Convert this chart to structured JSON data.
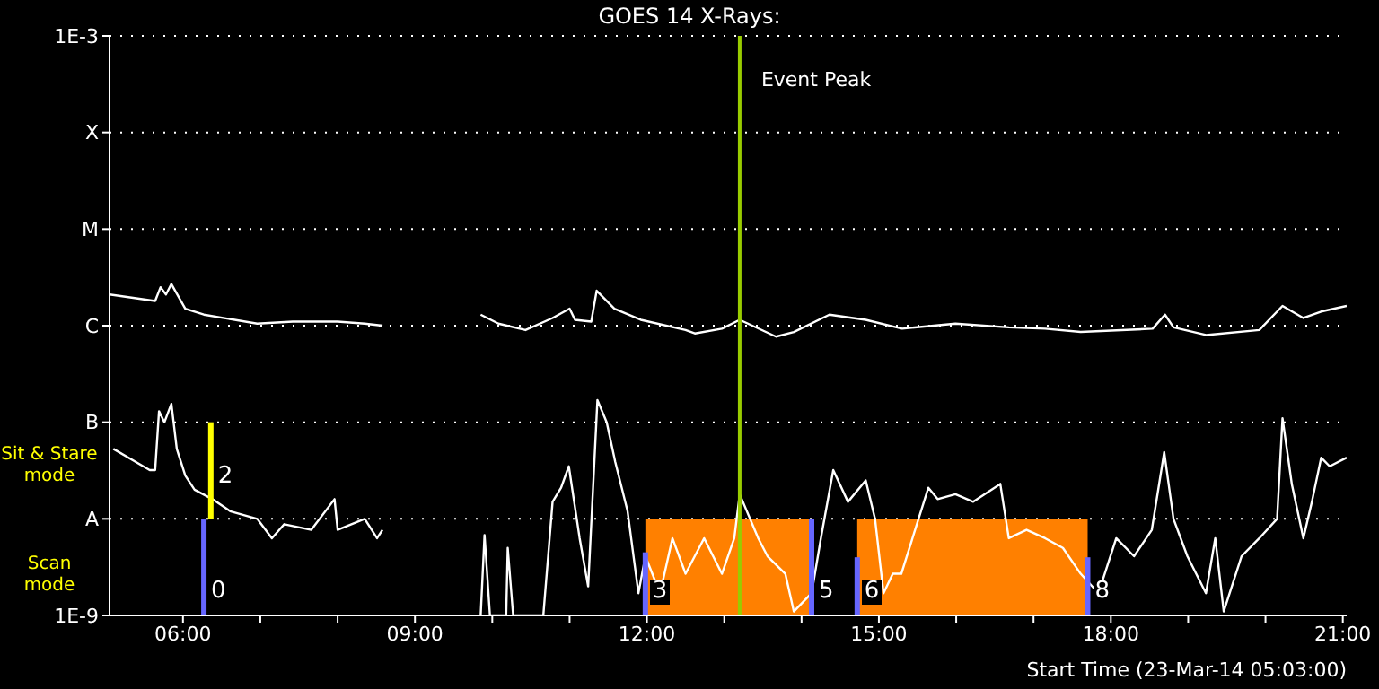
{
  "chart_data": {
    "type": "line",
    "title": "GOES 14 X-Rays:",
    "xlabel": "Start Time (23-Mar-14 05:03:00)",
    "xlim": [
      5.05,
      21.05
    ],
    "xticks": [
      {
        "value": 6,
        "label": "06:00"
      },
      {
        "value": 7,
        "label": null
      },
      {
        "value": 8,
        "label": null
      },
      {
        "value": 9,
        "label": "09:00"
      },
      {
        "value": 10,
        "label": null
      },
      {
        "value": 11,
        "label": null
      },
      {
        "value": 12,
        "label": "12:00"
      },
      {
        "value": 13,
        "label": null
      },
      {
        "value": 14,
        "label": null
      },
      {
        "value": 15,
        "label": "15:00"
      },
      {
        "value": 16,
        "label": null
      },
      {
        "value": 17,
        "label": null
      },
      {
        "value": 18,
        "label": "18:00"
      },
      {
        "value": 19,
        "label": null
      },
      {
        "value": 20,
        "label": null
      },
      {
        "value": 21,
        "label": "21:00"
      }
    ],
    "ylim": [
      1e-09,
      0.001
    ],
    "log": true,
    "yticks": [
      {
        "value": 1e-09,
        "label": "1E-9"
      },
      {
        "value": 1e-08,
        "label": "A"
      },
      {
        "value": 1e-07,
        "label": "B"
      },
      {
        "value": 1e-06,
        "label": "C"
      },
      {
        "value": 1e-05,
        "label": "M"
      },
      {
        "value": 0.0001,
        "label": "X"
      },
      {
        "value": 0.001,
        "label": "1E-3"
      }
    ],
    "grid": "y",
    "legend": false,
    "series": [
      {
        "type": "area",
        "color": "#ff8000",
        "x": [
          11.98,
          14.13,
          14.14,
          14.72,
          17.7
        ],
        "values": [
          1e-08,
          1e-08,
          null,
          1e-08,
          1e-08
        ]
      },
      {
        "color": "#ffffff",
        "x": [
          5.05,
          5.64,
          5.71,
          5.78,
          5.85,
          6.03,
          6.27,
          6.96,
          7.42,
          8.0,
          8.35,
          8.58,
          9.2,
          9.85,
          10.08,
          10.43,
          10.78,
          11.0,
          11.07,
          11.28,
          11.35,
          11.58,
          11.92,
          12.5,
          12.62,
          12.97,
          13.2,
          13.67,
          13.9,
          14.36,
          14.83,
          15.3,
          15.99,
          16.68,
          17.15,
          17.61,
          18.54,
          18.7,
          18.81,
          19.23,
          19.92,
          20.22,
          20.49,
          20.72,
          21.05
        ],
        "values": [
          2.1e-06,
          1.8e-06,
          2.5e-06,
          2.1e-06,
          2.7e-06,
          1.5e-06,
          1.3e-06,
          1.05e-06,
          1.1e-06,
          1.1e-06,
          1.05e-06,
          1e-06,
          null,
          1.3e-06,
          1.05e-06,
          9e-07,
          1.2e-06,
          1.5e-06,
          1.15e-06,
          1.1e-06,
          2.3e-06,
          1.5e-06,
          1.15e-06,
          9e-07,
          8.3e-07,
          9.3e-07,
          1.15e-06,
          7.7e-07,
          8.6e-07,
          1.3e-06,
          1.15e-06,
          9.3e-07,
          1.05e-06,
          9.6e-07,
          9.3e-07,
          8.6e-07,
          9.3e-07,
          1.3e-06,
          9.6e-07,
          8e-07,
          9e-07,
          1.6e-06,
          1.2e-06,
          1.4e-06,
          1.6e-06
        ]
      },
      {
        "color": "#ffffff",
        "x": [
          5.1,
          5.57,
          5.64,
          5.69,
          5.76,
          5.85,
          5.92,
          6.03,
          6.15,
          6.38,
          6.61,
          6.96,
          7.15,
          7.31,
          7.66,
          7.96,
          8.0,
          8.35,
          8.51,
          8.58,
          9.2,
          9.85,
          9.9,
          9.97,
          10.18,
          10.2,
          10.27,
          10.66,
          10.78,
          10.89,
          10.99,
          11.13,
          11.24,
          11.36,
          11.48,
          11.59,
          11.75,
          11.89,
          11.98,
          12.17,
          12.33,
          12.5,
          12.74,
          12.97,
          13.13,
          13.2,
          13.44,
          13.56,
          13.79,
          13.9,
          14.13,
          14.25,
          14.41,
          14.6,
          14.83,
          14.95,
          15.06,
          15.18,
          15.29,
          15.64,
          15.76,
          15.99,
          16.22,
          16.57,
          16.68,
          16.91,
          17.15,
          17.38,
          17.61,
          17.84,
          18.07,
          18.3,
          18.53,
          18.69,
          18.81,
          18.99,
          19.23,
          19.35,
          19.46,
          19.69,
          19.92,
          20.15,
          20.22,
          20.34,
          20.49,
          20.6,
          20.72,
          20.83,
          21.05
        ],
        "values": [
          5.3e-08,
          3.2e-08,
          3.2e-08,
          1.3e-07,
          1e-07,
          1.55e-07,
          5.3e-08,
          2.8e-08,
          2e-08,
          1.6e-08,
          1.2e-08,
          1e-08,
          6.3e-09,
          8.8e-09,
          7.7e-09,
          1.6e-08,
          7.7e-09,
          1e-08,
          6.3e-09,
          7.7e-09,
          null,
          1e-09,
          6.8e-09,
          1e-09,
          1e-09,
          5e-09,
          1e-09,
          1e-09,
          1.5e-08,
          2.1e-08,
          3.5e-08,
          6.3e-09,
          2e-09,
          1.7e-07,
          1e-07,
          3.9e-08,
          1.2e-08,
          1.7e-09,
          4.1e-09,
          1.7e-09,
          6.3e-09,
          2.7e-09,
          6.3e-09,
          2.7e-09,
          6.3e-09,
          1.8e-08,
          6.3e-09,
          4.1e-09,
          2.7e-09,
          1.1e-09,
          1.7e-09,
          6.3e-09,
          3.2e-08,
          1.5e-08,
          2.5e-08,
          1e-08,
          1.7e-09,
          2.7e-09,
          2.7e-09,
          2.1e-08,
          1.6e-08,
          1.8e-08,
          1.5e-08,
          2.3e-08,
          6.3e-09,
          7.7e-09,
          6.3e-09,
          5e-09,
          2.7e-09,
          1.7e-09,
          6.3e-09,
          4.1e-09,
          7.7e-09,
          4.9e-08,
          1e-08,
          4.1e-09,
          1.7e-09,
          6.3e-09,
          1.1e-09,
          4.1e-09,
          6.3e-09,
          1e-08,
          1.1e-07,
          2.3e-08,
          6.3e-09,
          1.5e-08,
          4.3e-08,
          3.5e-08,
          4.3e-08
        ]
      },
      {
        "color": "#6666ff",
        "x": [
          6.27,
          6.27
        ],
        "values": [
          1e-09,
          1e-08
        ]
      },
      {
        "color": "#6666ff",
        "x": [
          11.98,
          11.98
        ],
        "values": [
          1e-09,
          4.5e-09
        ]
      },
      {
        "color": "#6666ff",
        "x": [
          14.13,
          14.13
        ],
        "values": [
          1e-09,
          1e-08
        ]
      },
      {
        "color": "#6666ff",
        "x": [
          14.72,
          14.72
        ],
        "values": [
          1e-09,
          4e-09
        ]
      },
      {
        "color": "#6666ff",
        "x": [
          17.7,
          17.7
        ],
        "values": [
          1e-09,
          4e-09
        ]
      },
      {
        "color": "#ffff00",
        "x": [
          6.36,
          6.36
        ],
        "values": [
          1e-08,
          1e-07
        ]
      }
    ],
    "ref_lines": [
      {
        "axis": "x",
        "value": 13.2,
        "label": "Event Peak",
        "color": "#99cc00"
      }
    ],
    "annotations": [
      "Sit & Stare mode",
      "Scan mode",
      {
        "text": "0",
        "x": 6.27,
        "y": 1.6e-09
      },
      {
        "text": "2",
        "x": 6.36,
        "y": 2.5e-08
      },
      {
        "text": "3",
        "x": 11.98,
        "y": 1.6e-09
      },
      {
        "text": "5",
        "x": 14.13,
        "y": 1.6e-09
      },
      {
        "text": "6",
        "x": 14.72,
        "y": 1.6e-09
      },
      {
        "text": "8",
        "x": 17.7,
        "y": 1.6e-09
      }
    ]
  }
}
